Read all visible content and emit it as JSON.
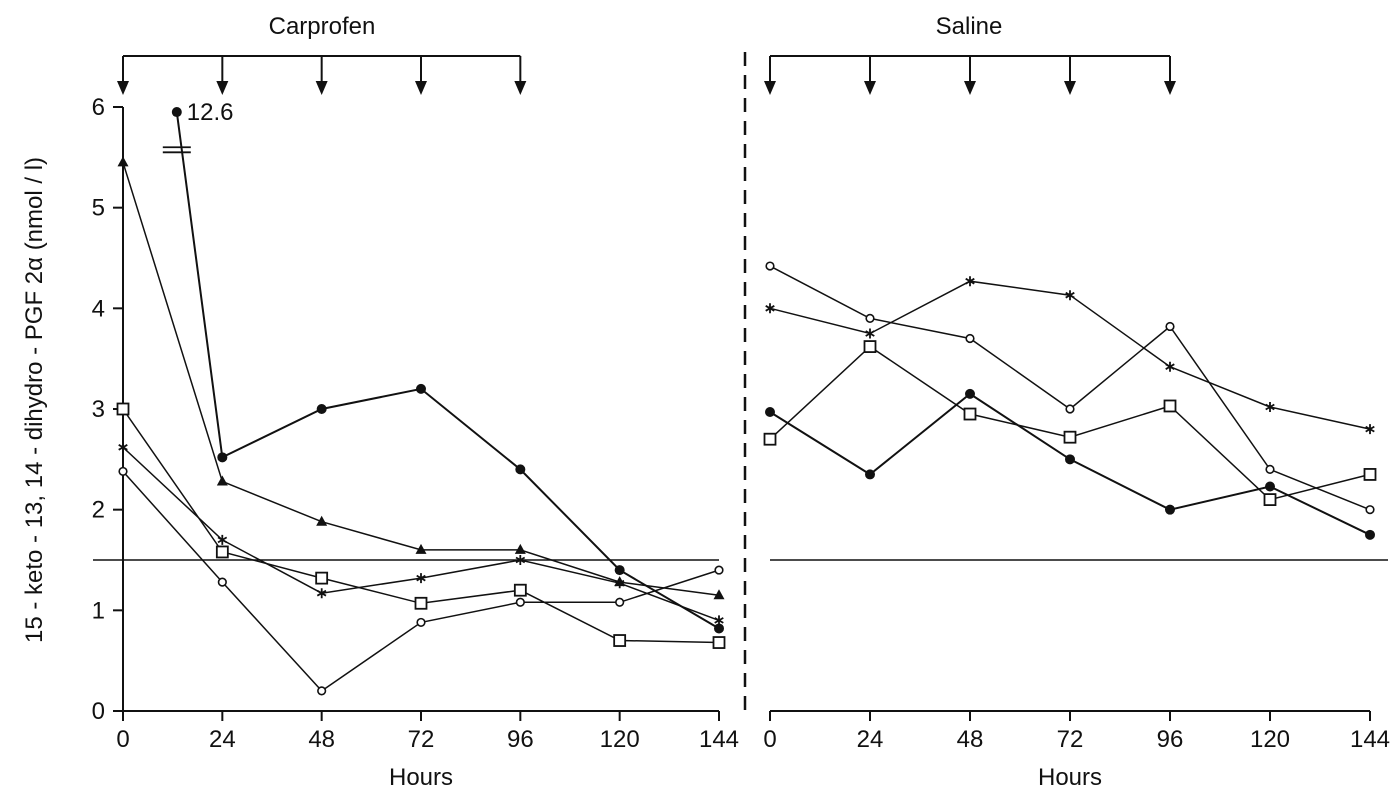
{
  "figure": {
    "ylabel": "15 - keto - 13, 14 - dihydro - PGF 2α (nmol / l)",
    "threshold": 1.5,
    "colors": {
      "ink": "#111111",
      "background": "#ffffff"
    }
  },
  "chart_data": [
    {
      "type": "line",
      "title": "Carprofen",
      "xlabel": "Hours",
      "x_ticks": [
        0,
        24,
        48,
        72,
        96,
        120,
        144
      ],
      "x_tick_labels": [
        "0",
        "24",
        "48",
        "72",
        "96",
        "120",
        "144"
      ],
      "y_ticks": [
        0,
        1,
        2,
        3,
        4,
        5,
        6
      ],
      "y_tick_labels": [
        "0",
        "1",
        "2",
        "3",
        "4",
        "5",
        "6"
      ],
      "xlim": [
        0,
        144
      ],
      "ylim": [
        0,
        6
      ],
      "dosing_hours": [
        0,
        24,
        48,
        72,
        96
      ],
      "annotation": {
        "text": "12.6",
        "x": 13,
        "y": 5.95
      },
      "series": [
        {
          "marker": "filled-circle",
          "x": [
            13,
            24,
            48,
            72,
            96,
            120,
            144
          ],
          "y": [
            5.95,
            2.52,
            3.0,
            3.2,
            2.4,
            1.4,
            0.82
          ]
        },
        {
          "marker": "filled-triangle",
          "x": [
            0,
            24,
            48,
            72,
            96,
            120,
            144
          ],
          "y": [
            5.45,
            2.28,
            1.88,
            1.6,
            1.6,
            1.28,
            1.15
          ]
        },
        {
          "marker": "open-square",
          "x": [
            0,
            24,
            48,
            72,
            96,
            120,
            144
          ],
          "y": [
            3.0,
            1.58,
            1.32,
            1.07,
            1.2,
            0.7,
            0.68
          ]
        },
        {
          "marker": "asterisk",
          "x": [
            0,
            24,
            48,
            72,
            96,
            120,
            144
          ],
          "y": [
            2.62,
            1.7,
            1.17,
            1.32,
            1.5,
            1.27,
            0.9
          ]
        },
        {
          "marker": "open-circle",
          "x": [
            0,
            24,
            48,
            72,
            96,
            120,
            144
          ],
          "y": [
            2.38,
            1.28,
            0.2,
            0.88,
            1.08,
            1.08,
            1.4
          ]
        }
      ]
    },
    {
      "type": "line",
      "title": "Saline",
      "xlabel": "Hours",
      "x_ticks": [
        0,
        24,
        48,
        72,
        96,
        120,
        144
      ],
      "x_tick_labels": [
        "0",
        "24",
        "48",
        "72",
        "96",
        "120",
        "144"
      ],
      "xlim": [
        0,
        144
      ],
      "ylim": [
        0,
        6
      ],
      "dosing_hours": [
        0,
        24,
        48,
        72,
        96
      ],
      "series": [
        {
          "marker": "open-circle",
          "x": [
            0,
            24,
            48,
            72,
            96,
            120,
            144
          ],
          "y": [
            4.42,
            3.9,
            3.7,
            3.0,
            3.82,
            2.4,
            2.0
          ]
        },
        {
          "marker": "asterisk",
          "x": [
            0,
            24,
            48,
            72,
            96,
            120,
            144
          ],
          "y": [
            4.0,
            3.75,
            4.27,
            4.13,
            3.42,
            3.02,
            2.8
          ]
        },
        {
          "marker": "filled-circle",
          "x": [
            0,
            24,
            48,
            72,
            96,
            120,
            144
          ],
          "y": [
            2.97,
            2.35,
            3.15,
            2.5,
            2.0,
            2.23,
            1.75
          ]
        },
        {
          "marker": "open-square",
          "x": [
            0,
            24,
            48,
            72,
            96,
            120,
            144
          ],
          "y": [
            2.7,
            3.62,
            2.95,
            2.72,
            3.03,
            2.1,
            2.35
          ]
        }
      ]
    }
  ]
}
